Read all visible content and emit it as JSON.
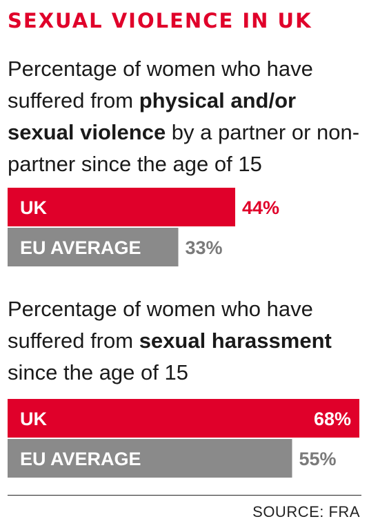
{
  "heading": "SEXUAL VIOLENCE IN UK",
  "colors": {
    "accent": "#e0002a",
    "grey": "#8a8a8a",
    "grey_text": "#7a7a7a",
    "white": "#ffffff"
  },
  "chart_data": [
    {
      "type": "bar",
      "orientation": "horizontal",
      "description": {
        "prefix": "Percentage of women who have suffered from ",
        "bold": "physical and/or sexual violence",
        "suffix": " by a partner or non-partner since the age of 15"
      },
      "categories": [
        "UK",
        "EU AVERAGE"
      ],
      "values": [
        44,
        33
      ],
      "value_labels": [
        "44%",
        "33%"
      ],
      "xlim": [
        0,
        68
      ]
    },
    {
      "type": "bar",
      "orientation": "horizontal",
      "description": {
        "prefix": "Percentage of women who have suffered from ",
        "bold": "sexual harassment",
        "suffix": " since the age of 15"
      },
      "categories": [
        "UK",
        "EU AVERAGE"
      ],
      "values": [
        68,
        55
      ],
      "value_labels": [
        "68%",
        "55%"
      ],
      "xlim": [
        0,
        68
      ]
    }
  ],
  "source": "SOURCE: FRA"
}
